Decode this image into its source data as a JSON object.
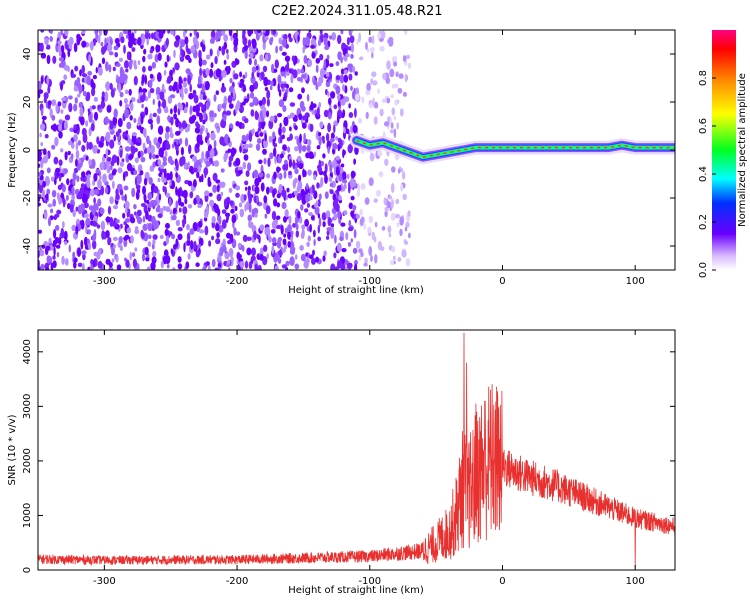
{
  "title": "C2E2.2024.311.05.48.R21",
  "chart_data": [
    {
      "type": "heatmap",
      "xlabel": "Height of straight line (km)",
      "ylabel": "Frequency (Hz)",
      "xlim": [
        -350,
        130
      ],
      "ylim": [
        -50,
        50
      ],
      "xticks": [
        -300,
        -200,
        -100,
        0,
        100
      ],
      "yticks": [
        -40,
        -20,
        0,
        20,
        40
      ],
      "noise_region_x": [
        -350,
        -70
      ],
      "signal_start_x": -110,
      "signal_track": {
        "x": [
          -110,
          -100,
          -90,
          -80,
          -70,
          -60,
          -50,
          -40,
          -30,
          -20,
          -10,
          0,
          20,
          40,
          60,
          80,
          90,
          100,
          110,
          130
        ],
        "frequency": [
          4,
          2,
          3,
          1,
          -1,
          -3,
          -2,
          -1,
          0,
          1,
          1,
          1,
          1,
          1,
          1,
          1,
          2,
          1,
          1,
          1
        ]
      },
      "colorbar": {
        "label": "Normalized spectral amplitude",
        "range": [
          0,
          1
        ],
        "ticks": [
          "0.0",
          "0.2",
          "0.4",
          "0.6",
          "0.8"
        ]
      }
    },
    {
      "type": "line",
      "xlabel": "Height of straight line (km)",
      "ylabel": "SNR (10 * v/v)",
      "xlim": [
        -350,
        130
      ],
      "ylim": [
        0,
        4400
      ],
      "xticks": [
        -300,
        -200,
        -100,
        0,
        100
      ],
      "yticks": [
        0,
        1000,
        2000,
        3000,
        4000
      ],
      "series": [
        {
          "color": "#e8302e",
          "envelope": {
            "x": [
              -350,
              -300,
              -200,
              -150,
              -100,
              -80,
              -60,
              -50,
              -40,
              -35,
              -30,
              -25,
              -20,
              -15,
              -10,
              -5,
              0,
              10,
              20,
              40,
              60,
              80,
              90,
              100,
              110,
              120,
              130
            ],
            "y": [
              200,
              180,
              190,
              220,
              250,
              300,
              350,
              500,
              700,
              1000,
              1500,
              1400,
              1700,
              1900,
              2000,
              2000,
              1900,
              1800,
              1700,
              1550,
              1350,
              1150,
              1050,
              950,
              900,
              850,
              800
            ]
          },
          "spikes": [
            {
              "x": -29,
              "y": 4350
            },
            {
              "x": -27,
              "y": 3800
            },
            {
              "x": -20,
              "y": 3050
            },
            {
              "x": -13,
              "y": 3100
            },
            {
              "x": -2,
              "y": 2400
            },
            {
              "x": 100,
              "y": 30
            }
          ]
        }
      ]
    }
  ]
}
